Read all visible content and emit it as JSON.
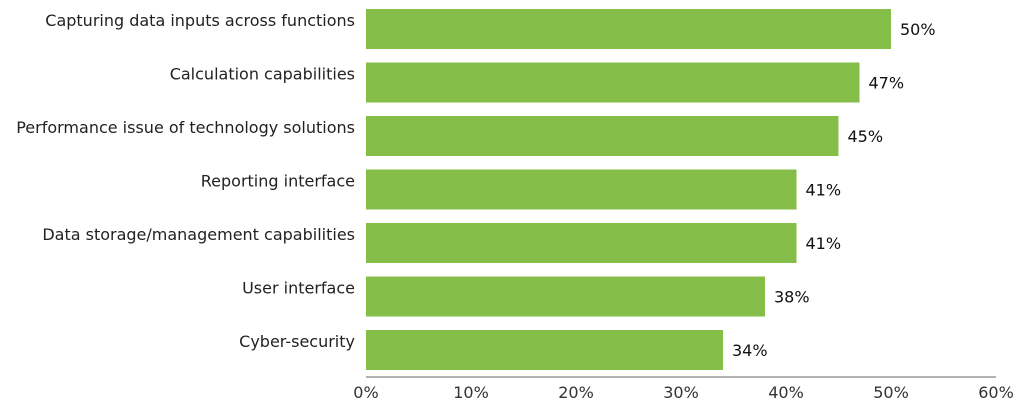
{
  "chart_data": {
    "type": "bar",
    "orientation": "horizontal",
    "categories": [
      "Capturing data inputs across functions",
      "Calculation capabilities",
      "Performance issue of technology solutions",
      "Reporting interface",
      "Data storage/management capabilities",
      "User interface",
      "Cyber-security"
    ],
    "values": [
      50,
      47,
      45,
      41,
      41,
      38,
      34
    ],
    "value_labels": [
      "50%",
      "47%",
      "45%",
      "41%",
      "41%",
      "38%",
      "34%"
    ],
    "xlim": [
      0,
      60
    ],
    "x_ticks": [
      "0%",
      "10%",
      "20%",
      "30%",
      "40%",
      "50%",
      "60%"
    ],
    "grid": false,
    "legend": "none",
    "bar_color": "#84bd47",
    "axis_color": "#666666"
  }
}
